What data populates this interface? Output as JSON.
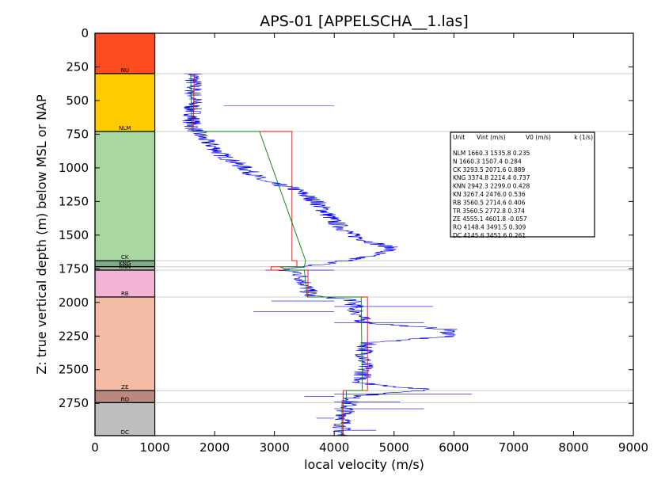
{
  "chart_data": {
    "type": "line",
    "title": "APS-01 [APPELSCHA__1.las]",
    "xlabel": "local velocity (m/s)",
    "ylabel": "Z: true vertical depth (m) below MSL or NAP",
    "xlim": [
      0,
      9000
    ],
    "ylim": [
      2990,
      0
    ],
    "y_inverted": true,
    "xticks": [
      0,
      1000,
      2000,
      3000,
      4000,
      5000,
      6000,
      7000,
      8000,
      9000
    ],
    "yticks": [
      0,
      250,
      500,
      750,
      1000,
      1250,
      1500,
      1750,
      2000,
      2250,
      2500,
      2750
    ],
    "grid": false,
    "units_column_xrange": [
      0,
      1000
    ],
    "units": [
      {
        "name": "NU",
        "top": 0,
        "base": 300,
        "color": "#ff4b22"
      },
      {
        "name": "NLM",
        "top": 300,
        "base": 730,
        "color": "#ffcc00"
      },
      {
        "name": "CK",
        "top": 730,
        "base": 1690,
        "color": "#a8d8a0"
      },
      {
        "name": "KNG",
        "top": 1690,
        "base": 1735,
        "color": "#7fa98a"
      },
      {
        "name": "KNN",
        "top": 1735,
        "base": 1760,
        "color": "#9fc0a8"
      },
      {
        "name": "RB",
        "top": 1760,
        "base": 1960,
        "color": "#f3b3d5"
      },
      {
        "name": "ZE",
        "top": 1960,
        "base": 2655,
        "color": "#f4bca4"
      },
      {
        "name": "RO",
        "top": 2655,
        "base": 2745,
        "color": "#b98880"
      },
      {
        "name": "DC",
        "top": 2745,
        "base": 2990,
        "color": "#bebebe"
      }
    ],
    "boundary_lines": [
      300,
      730,
      1690,
      1735,
      1760,
      1960,
      2655,
      2745
    ],
    "series": [
      {
        "color": "#0000ff",
        "style": "noisy",
        "points": [
          [
            1650,
            300
          ],
          [
            1640,
            450
          ],
          [
            1660,
            500
          ],
          [
            1620,
            550
          ],
          [
            1640,
            600
          ],
          [
            1620,
            650
          ],
          [
            1640,
            700
          ],
          [
            1720,
            740
          ],
          [
            1750,
            760
          ],
          [
            1850,
            800
          ],
          [
            2000,
            850
          ],
          [
            2100,
            900
          ],
          [
            2300,
            950
          ],
          [
            2500,
            1000
          ],
          [
            2650,
            1050
          ],
          [
            2800,
            1100
          ],
          [
            3300,
            1150
          ],
          [
            3500,
            1200
          ],
          [
            3700,
            1250
          ],
          [
            3800,
            1300
          ],
          [
            3900,
            1350
          ],
          [
            4000,
            1400
          ],
          [
            4150,
            1450
          ],
          [
            4300,
            1500
          ],
          [
            4600,
            1550
          ],
          [
            5000,
            1600
          ],
          [
            4600,
            1650
          ],
          [
            4100,
            1700
          ],
          [
            3700,
            1720
          ],
          [
            3100,
            1760
          ],
          [
            3400,
            1780
          ],
          [
            3500,
            1850
          ],
          [
            3600,
            1950
          ],
          [
            4300,
            1980
          ],
          [
            4350,
            2050
          ],
          [
            4500,
            2150
          ],
          [
            5900,
            2200
          ],
          [
            5950,
            2250
          ],
          [
            4550,
            2300
          ],
          [
            4500,
            2400
          ],
          [
            4500,
            2500
          ],
          [
            4450,
            2600
          ],
          [
            5600,
            2650
          ],
          [
            4300,
            2700
          ],
          [
            4200,
            2800
          ],
          [
            4150,
            2900
          ],
          [
            4100,
            2990
          ]
        ],
        "spikes": [
          [
            540,
            2150
          ],
          [
            1760,
            2850
          ],
          [
            1990,
            2950
          ],
          [
            2070,
            2650
          ],
          [
            2030,
            5650
          ],
          [
            2150,
            5500
          ],
          [
            2680,
            6300
          ],
          [
            2700,
            3500
          ],
          [
            2740,
            5100
          ],
          [
            2790,
            5500
          ],
          [
            2860,
            3700
          ],
          [
            2950,
            4700
          ]
        ]
      },
      {
        "color": "#ff0000",
        "style": "step",
        "points": [
          [
            1660,
            300
          ],
          [
            1640,
            730
          ],
          [
            3293,
            730
          ],
          [
            3293,
            1690
          ],
          [
            3375,
            1690
          ],
          [
            3375,
            1735
          ],
          [
            2942,
            1735
          ],
          [
            2942,
            1760
          ],
          [
            3560,
            1760
          ],
          [
            3560,
            1960
          ],
          [
            4555,
            1960
          ],
          [
            4555,
            2655
          ],
          [
            4148,
            2655
          ],
          [
            4148,
            2745
          ],
          [
            4146,
            2745
          ],
          [
            4146,
            2990
          ]
        ]
      },
      {
        "color": "#008000",
        "style": "line",
        "points": [
          [
            1600,
            300
          ],
          [
            1620,
            730
          ],
          [
            2750,
            730
          ],
          [
            3520,
            1690
          ],
          [
            3500,
            1735
          ],
          [
            3100,
            1735
          ],
          [
            3200,
            1760
          ],
          [
            3500,
            1760
          ],
          [
            3550,
            1960
          ],
          [
            4450,
            1960
          ],
          [
            4470,
            2655
          ],
          [
            4200,
            2655
          ],
          [
            4210,
            2745
          ],
          [
            4130,
            2745
          ],
          [
            4130,
            2990
          ]
        ]
      }
    ],
    "legend_table": {
      "header": [
        "Unit",
        "Vint (m/s)",
        "V0 (m/s)",
        "k (1/s)"
      ],
      "rows": [
        [
          "NLM",
          "1660.3",
          "1535.8",
          "0.235"
        ],
        [
          "N",
          "1660.3",
          "1507.4",
          "0.284"
        ],
        [
          "CK",
          "3293.5",
          "2071.6",
          "0.889"
        ],
        [
          "KNG",
          "3374.8",
          "2214.4",
          "0.737"
        ],
        [
          "KNN",
          "2942.3",
          "2299.0",
          "0.428"
        ],
        [
          "KN",
          "3267.4",
          "2476.0",
          "0.536"
        ],
        [
          "RB",
          "3560.5",
          "2714.6",
          "0.406"
        ],
        [
          "TR",
          "3560.5",
          "2772.8",
          "0.374"
        ],
        [
          "ZE",
          "4555.1",
          "4601.8",
          "-0.057"
        ],
        [
          "RO",
          "4148.4",
          "3491.5",
          "0.309"
        ],
        [
          "DC",
          "4145.6",
          "3451.6",
          "0.261"
        ]
      ]
    }
  }
}
